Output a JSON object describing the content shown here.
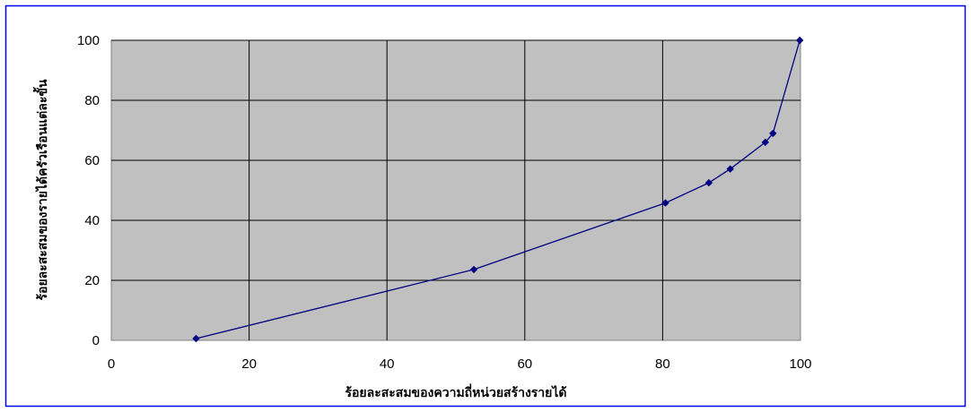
{
  "chart_data": {
    "type": "line",
    "title": "",
    "xlabel": "ร้อยละสะสมของความถี่หน่วยสร้างรายได้",
    "ylabel": "ร้อยละสะสมของรายได้ครัวเรือนแต่ละขั้น",
    "xlim": [
      0,
      100
    ],
    "ylim": [
      0,
      100
    ],
    "x_ticks": [
      0,
      20,
      40,
      60,
      80,
      100
    ],
    "y_ticks": [
      0,
      20,
      40,
      60,
      80,
      100
    ],
    "grid": true,
    "legend": "none",
    "series": [
      {
        "x": [
          12.3,
          52.6,
          80.4,
          86.7,
          89.8,
          94.9,
          96.0,
          99.9
        ],
        "y": [
          0.6,
          23.6,
          45.8,
          52.5,
          57.1,
          66.0,
          69.0,
          100.0
        ]
      }
    ]
  },
  "colors": {
    "plot_background": "#c0c0c0",
    "gridlines": "#000000",
    "series_line": "#000080",
    "frame_border": "#0000ff"
  }
}
